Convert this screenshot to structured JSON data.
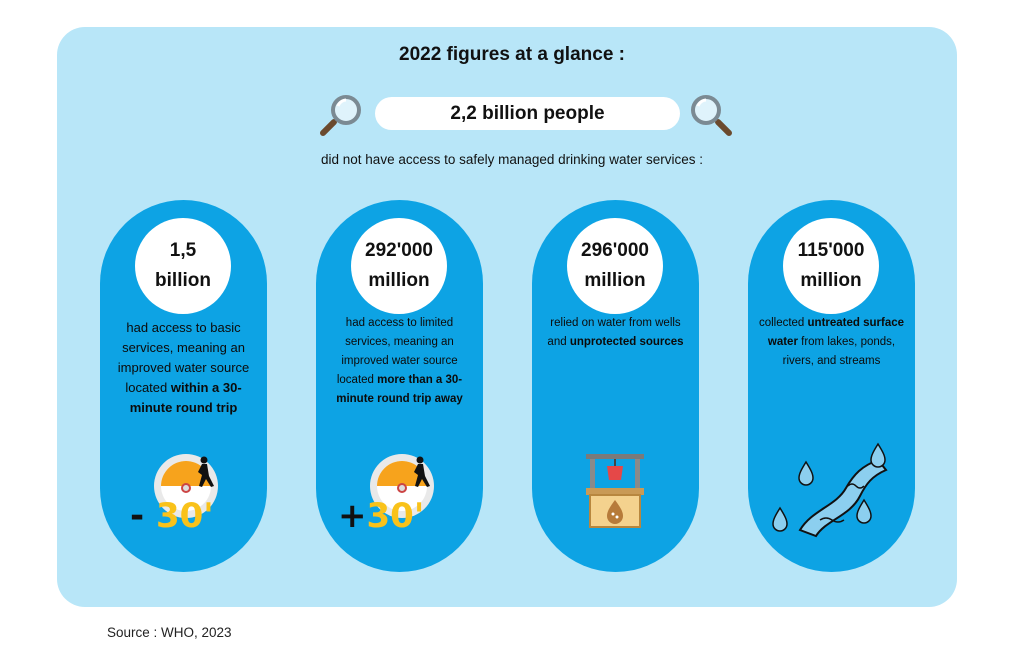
{
  "title": "2022 figures at a glance :",
  "headline": "2,2 billion people",
  "subtitle": "did not have access to safely managed drinking water services :",
  "cards": [
    {
      "number_line1": "1,5",
      "number_line2": "billion",
      "text_before": "had access to basic services, meaning an improved water source located ",
      "text_bold": "within a 30-minute round trip",
      "text_after": "",
      "icon": "stopwatch-walker-icon",
      "icon_label": "- 30'"
    },
    {
      "number_line1": "292'000",
      "number_line2": "million",
      "text_before": "had access to limited services, meaning an improved water source located ",
      "text_bold": "more than a 30-minute round trip away",
      "text_after": "",
      "icon": "stopwatch-walker-icon",
      "icon_label": "+30'"
    },
    {
      "number_line1": "296'000",
      "number_line2": "million",
      "text_before": "relied on water from wells and ",
      "text_bold": "unprotected sources",
      "text_after": "",
      "icon": "water-well-icon"
    },
    {
      "number_line1": "115'000",
      "number_line2": "million",
      "text_before": "collected ",
      "text_bold": "untreated surface water",
      "text_after": " from lakes, ponds, rivers, and streams",
      "icon": "river-droplets-icon"
    }
  ],
  "source": "Source : WHO, 2023",
  "colors": {
    "panel": "#b8e6f8",
    "card": "#0da3e4",
    "accent_orange": "#f7a31c",
    "accent_yellow": "#f9c21a"
  }
}
